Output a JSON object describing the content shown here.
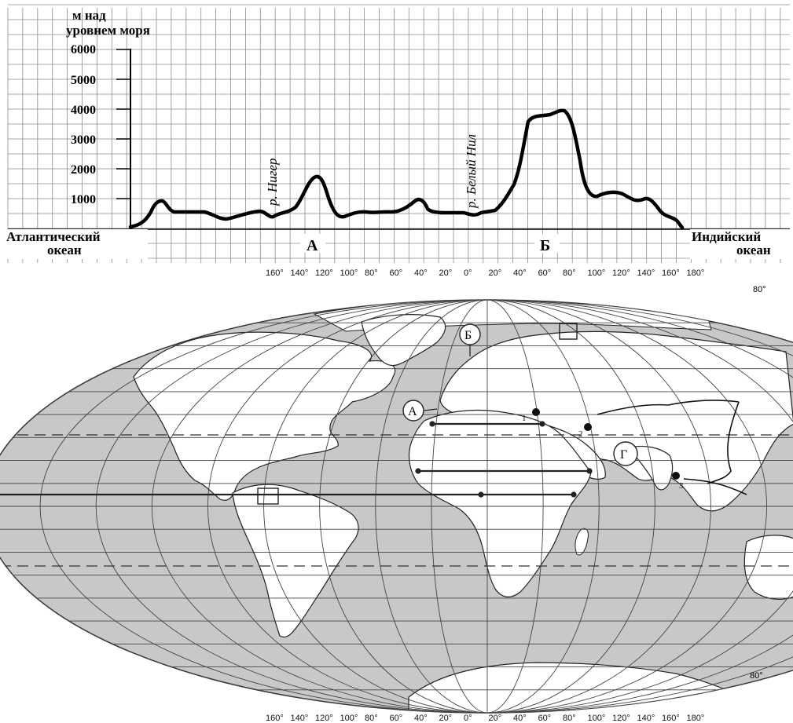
{
  "profile": {
    "y_axis_label_line1": "м над",
    "y_axis_label_line2": "уровнем моря",
    "y_ticks": [
      "6000",
      "5000",
      "4000",
      "3000",
      "2000",
      "1000"
    ],
    "left_label_line1": "Атлантический",
    "left_label_line2": "океан",
    "right_label_line1": "Индийский",
    "right_label_line2": "океан",
    "point_a": "А",
    "point_b": "Б",
    "river_niger": "р. Нигер",
    "river_white_nile": "р. Белый Нил"
  },
  "map": {
    "lon_labels_top": [
      "160°",
      "140°",
      "120°",
      "100°",
      "80°",
      "60°",
      "40°",
      "20°",
      "0°",
      "20°",
      "40°",
      "60°",
      "80°",
      "100°",
      "120°",
      "140°",
      "160°",
      "180°"
    ],
    "lon_labels_bottom": [
      "160°",
      "140°",
      "120°",
      "100°",
      "80°",
      "60°",
      "40°",
      "20°",
      "0°",
      "20°",
      "40°",
      "60°",
      "80°",
      "100°",
      "120°",
      "140°",
      "160°",
      "180°"
    ],
    "lat_label_top": "80°",
    "lat_label_bottom": "80°",
    "marker_a": "А",
    "marker_b": "Б",
    "marker_g": "Г",
    "point_1": "1",
    "point_2": "2",
    "point_3": "3"
  }
}
